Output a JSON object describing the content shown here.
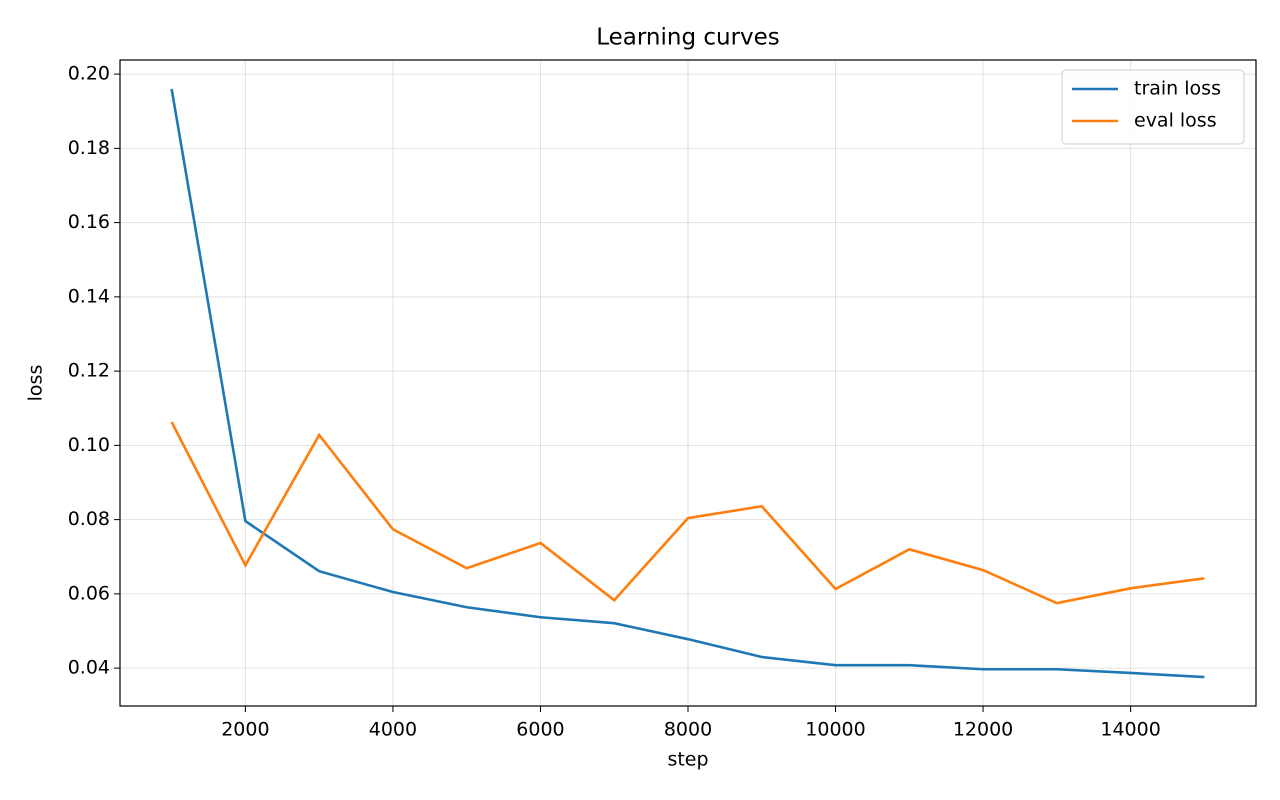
{
  "chart_data": {
    "type": "line",
    "title": "Learning curves",
    "x_label": "step",
    "y_label": "loss",
    "x": [
      1000,
      2000,
      3000,
      4000,
      5000,
      6000,
      7000,
      8000,
      9000,
      10000,
      11000,
      12000,
      13000,
      14000,
      15000
    ],
    "series": [
      {
        "name": "train loss",
        "color": "#1f77b4",
        "values": [
          0.196,
          0.0796,
          0.0661,
          0.0605,
          0.0564,
          0.0537,
          0.0521,
          0.0478,
          0.043,
          0.0408,
          0.0408,
          0.0397,
          0.0397,
          0.0387,
          0.0376
        ]
      },
      {
        "name": "eval loss",
        "color": "#ff7f0e",
        "values": [
          0.1063,
          0.0677,
          0.1028,
          0.0774,
          0.0669,
          0.0737,
          0.0583,
          0.0804,
          0.0836,
          0.0613,
          0.072,
          0.0664,
          0.0575,
          0.0615,
          0.0642
        ]
      }
    ],
    "xlim": [
      300,
      15700
    ],
    "ylim": [
      0.0298,
      0.2038
    ],
    "xticks": [
      2000,
      4000,
      6000,
      8000,
      10000,
      12000,
      14000
    ],
    "yticks": [
      {
        "value": 0.04,
        "label": "0.04"
      },
      {
        "value": 0.06,
        "label": "0.06"
      },
      {
        "value": 0.08,
        "label": "0.08"
      },
      {
        "value": 0.1,
        "label": "0.10"
      },
      {
        "value": 0.12,
        "label": "0.12"
      },
      {
        "value": 0.14,
        "label": "0.14"
      },
      {
        "value": 0.16,
        "label": "0.16"
      },
      {
        "value": 0.18,
        "label": "0.18"
      },
      {
        "value": 0.2,
        "label": "0.20"
      }
    ],
    "grid": true,
    "legend": "upper right"
  }
}
